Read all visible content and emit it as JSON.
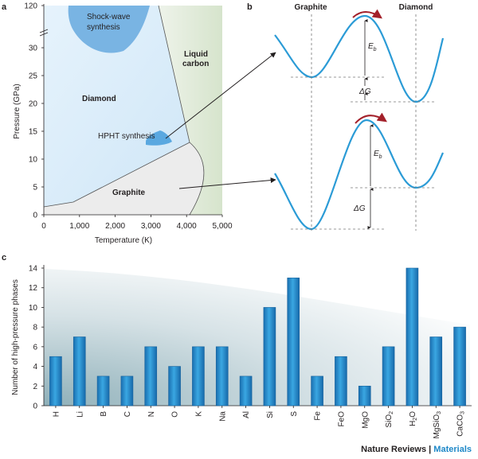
{
  "colors": {
    "blue": "#2b9bd6",
    "bar": "#2a95d3",
    "bar_dark": "#1563a0",
    "diamond_fill": "#dbeefa",
    "graphite_fill": "#ececec",
    "liquid_fill": "#dde8d4",
    "shock_fill": "#79b4e3",
    "arrow_red": "#a3202a"
  },
  "panel_a": {
    "label": "a",
    "xlabel": "Temperature (K)",
    "ylabel": "Pressure (GPa)",
    "xticks": [
      "0",
      "1,000",
      "2,000",
      "3,000",
      "4,000",
      "5,000"
    ],
    "yticks": [
      "0",
      "5",
      "10",
      "15",
      "20",
      "25",
      "30",
      "120"
    ],
    "regions": {
      "shock": [
        "Shock-wave",
        "synthesis"
      ],
      "liquid": [
        "Liquid",
        "carbon"
      ],
      "diamond": "Diamond",
      "hpht": "HPHT synthesis",
      "graphite": "Graphite"
    }
  },
  "panel_b": {
    "label": "b",
    "left_label": "Graphite",
    "right_label": "Diamond",
    "eb": "E",
    "eb_sub": "b",
    "dg": "ΔG"
  },
  "panel_c": {
    "label": "c",
    "ylabel": "Number of high-pressure phases"
  },
  "chart_data": {
    "type": "bar",
    "title": "",
    "xlabel": "",
    "ylabel": "Number of high-pressure phases",
    "ylim": [
      0,
      14
    ],
    "yticks": [
      0,
      2,
      4,
      6,
      8,
      10,
      12,
      14
    ],
    "categories": [
      "H",
      "Li",
      "B",
      "C",
      "N",
      "O",
      "K",
      "Na",
      "Al",
      "Si",
      "S",
      "Fe",
      "FeO",
      "MgO",
      "SiO2",
      "H2O",
      "MgSiO3",
      "CaCO3"
    ],
    "values": [
      5,
      7,
      3,
      3,
      6,
      4,
      6,
      6,
      3,
      10,
      13,
      3,
      5,
      2,
      6,
      14,
      7,
      8
    ]
  },
  "footer": {
    "journal": "Nature Reviews",
    "separator": "|",
    "section": "Materials"
  }
}
